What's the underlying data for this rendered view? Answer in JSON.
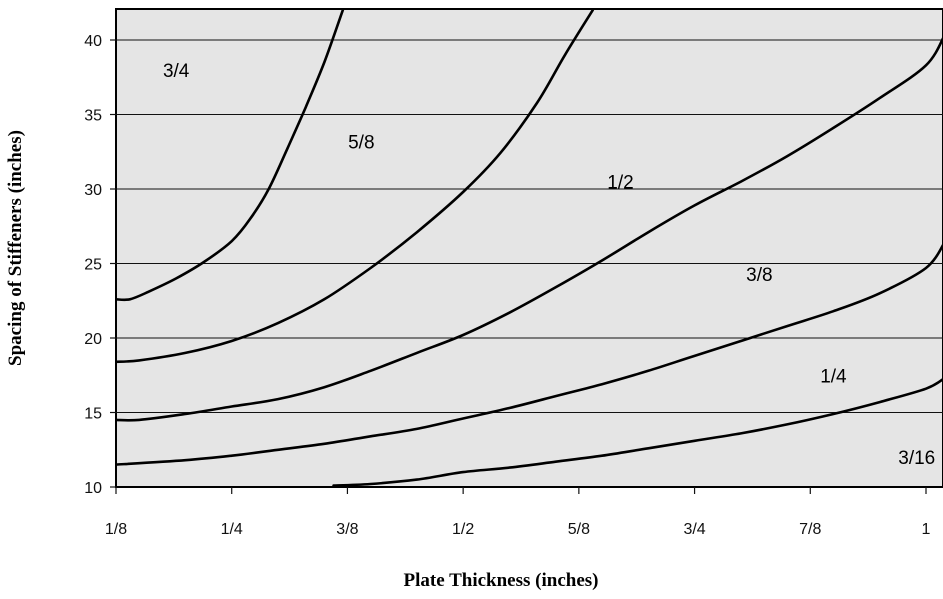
{
  "chart_data": {
    "type": "line",
    "title": "",
    "xlabel": "Plate Thickness (inches)",
    "ylabel": "Spacing of Stiffeners (inches)",
    "xlim": [
      0.125,
      1.0
    ],
    "ylim": [
      10,
      42
    ],
    "x_ticks": [
      {
        "value": 0.125,
        "label": "1/8"
      },
      {
        "value": 0.25,
        "label": "1/4"
      },
      {
        "value": 0.375,
        "label": "3/8"
      },
      {
        "value": 0.5,
        "label": "1/2"
      },
      {
        "value": 0.625,
        "label": "5/8"
      },
      {
        "value": 0.75,
        "label": "3/4"
      },
      {
        "value": 0.875,
        "label": "7/8"
      },
      {
        "value": 1.0,
        "label": "1"
      }
    ],
    "y_ticks": [
      10,
      15,
      20,
      25,
      30,
      35,
      40
    ],
    "grid": "horizontal",
    "background_color": "#e5e5e5",
    "line_color": "#000000",
    "series": [
      {
        "name": "3/4",
        "label_at": [
          0.19,
          38.0
        ],
        "points": [
          [
            0.125,
            22.6
          ],
          [
            0.14,
            22.6
          ],
          [
            0.16,
            23.1
          ],
          [
            0.19,
            24.0
          ],
          [
            0.22,
            25.1
          ],
          [
            0.25,
            26.5
          ],
          [
            0.27,
            28.0
          ],
          [
            0.29,
            30.0
          ],
          [
            0.31,
            32.7
          ],
          [
            0.33,
            35.5
          ],
          [
            0.35,
            38.5
          ],
          [
            0.37,
            42.0
          ]
        ]
      },
      {
        "name": "5/8",
        "label_at": [
          0.39,
          33.2
        ],
        "points": [
          [
            0.125,
            18.4
          ],
          [
            0.15,
            18.5
          ],
          [
            0.2,
            19.0
          ],
          [
            0.25,
            19.8
          ],
          [
            0.3,
            21.0
          ],
          [
            0.35,
            22.6
          ],
          [
            0.4,
            24.7
          ],
          [
            0.45,
            27.1
          ],
          [
            0.5,
            29.8
          ],
          [
            0.54,
            32.4
          ],
          [
            0.58,
            35.8
          ],
          [
            0.61,
            39.0
          ],
          [
            0.64,
            42.0
          ]
        ]
      },
      {
        "name": "1/2",
        "label_at": [
          0.67,
          30.5
        ],
        "points": [
          [
            0.125,
            14.5
          ],
          [
            0.15,
            14.5
          ],
          [
            0.2,
            14.9
          ],
          [
            0.25,
            15.4
          ],
          [
            0.3,
            15.9
          ],
          [
            0.35,
            16.7
          ],
          [
            0.4,
            17.8
          ],
          [
            0.45,
            19.0
          ],
          [
            0.5,
            20.2
          ],
          [
            0.55,
            21.7
          ],
          [
            0.6,
            23.4
          ],
          [
            0.65,
            25.2
          ],
          [
            0.7,
            27.1
          ],
          [
            0.75,
            28.9
          ],
          [
            0.8,
            30.5
          ],
          [
            0.85,
            32.2
          ],
          [
            0.9,
            34.1
          ],
          [
            0.95,
            36.1
          ],
          [
            1.0,
            38.3
          ],
          [
            1.02,
            40.3
          ]
        ]
      },
      {
        "name": "3/8",
        "label_at": [
          0.82,
          24.3
        ],
        "points": [
          [
            0.125,
            11.5
          ],
          [
            0.2,
            11.8
          ],
          [
            0.25,
            12.1
          ],
          [
            0.3,
            12.5
          ],
          [
            0.35,
            12.9
          ],
          [
            0.4,
            13.4
          ],
          [
            0.45,
            13.9
          ],
          [
            0.5,
            14.6
          ],
          [
            0.55,
            15.3
          ],
          [
            0.6,
            16.1
          ],
          [
            0.65,
            16.9
          ],
          [
            0.7,
            17.8
          ],
          [
            0.75,
            18.8
          ],
          [
            0.8,
            19.8
          ],
          [
            0.85,
            20.8
          ],
          [
            0.9,
            21.8
          ],
          [
            0.95,
            23.0
          ],
          [
            1.0,
            24.7
          ],
          [
            1.02,
            26.4
          ]
        ]
      },
      {
        "name": "1/4",
        "label_at": [
          0.9,
          17.5
        ],
        "points": [
          [
            0.36,
            10.1
          ],
          [
            0.4,
            10.2
          ],
          [
            0.45,
            10.5
          ],
          [
            0.5,
            11.0
          ],
          [
            0.55,
            11.3
          ],
          [
            0.6,
            11.7
          ],
          [
            0.65,
            12.1
          ],
          [
            0.7,
            12.6
          ],
          [
            0.75,
            13.1
          ],
          [
            0.8,
            13.6
          ],
          [
            0.85,
            14.2
          ],
          [
            0.9,
            14.9
          ],
          [
            0.95,
            15.7
          ],
          [
            1.0,
            16.6
          ],
          [
            1.02,
            17.3
          ]
        ]
      },
      {
        "name": "3/16",
        "label_at": [
          0.99,
          12.0
        ],
        "points": []
      }
    ]
  }
}
